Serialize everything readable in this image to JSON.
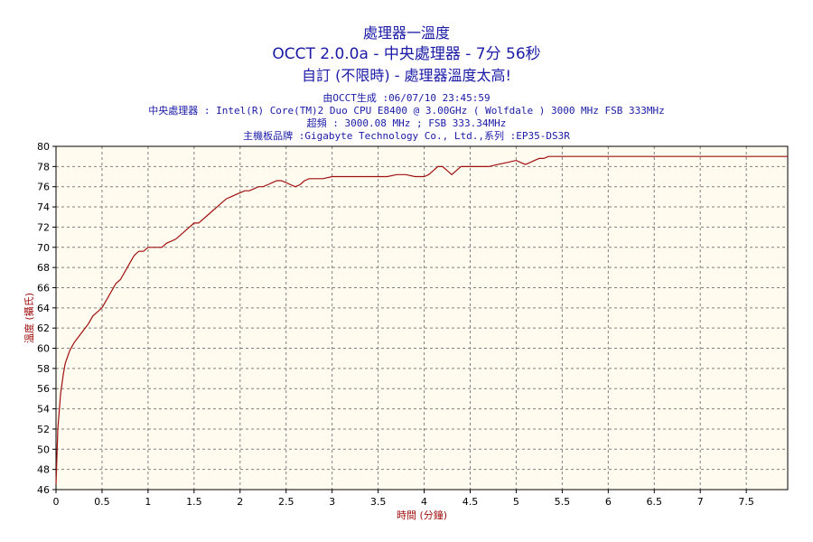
{
  "titles": {
    "line1": "處理器一溫度",
    "line2": "OCCT 2.0.0a - 中央處理器 - 7分 56秒",
    "line3": "自訂 (不限時) - 處理器溫度太高!"
  },
  "info": {
    "generated": "由OCCT生成 :06/07/10 23:45:59",
    "cpu": "中央處理器 : Intel(R) Core(TM)2 Duo CPU E8400 @ 3.00GHz ( Wolfdale ) 3000 MHz FSB 333MHz",
    "freq": "超頻 : 3000.08 MHz ; FSB 333.34MHz",
    "board": "主機板品牌 :Gigabyte Technology Co., Ltd.,系列 :EP35-DS3R"
  },
  "colors": {
    "title": "#1a1aa6",
    "line": "#a01010",
    "plot_bg": "#fffbee",
    "grid": "#808080",
    "axis_label": "#a01010"
  },
  "chart_data": {
    "type": "line",
    "xlabel": "時間 (分鐘)",
    "ylabel": "溫度 (攝氏)",
    "xlim": [
      0,
      7.95
    ],
    "ylim": [
      46,
      80
    ],
    "xticks": [
      "0",
      "0.5",
      "1",
      "1.5",
      "2",
      "2.5",
      "3",
      "3.5",
      "4",
      "4.5",
      "5",
      "5.5",
      "6",
      "6.5",
      "7",
      "7.5"
    ],
    "yticks": [
      "46",
      "48",
      "50",
      "52",
      "54",
      "56",
      "58",
      "60",
      "62",
      "64",
      "66",
      "68",
      "70",
      "72",
      "74",
      "76",
      "78",
      "80"
    ],
    "grid": true,
    "series": [
      {
        "x": [
          0,
          0.02,
          0.05,
          0.08,
          0.1,
          0.15,
          0.2,
          0.25,
          0.3,
          0.35,
          0.4,
          0.45,
          0.5,
          0.55,
          0.6,
          0.65,
          0.7,
          0.75,
          0.8,
          0.85,
          0.9,
          0.95,
          1.0,
          1.05,
          1.1,
          1.15,
          1.2,
          1.3,
          1.35,
          1.4,
          1.45,
          1.5,
          1.55,
          1.6,
          1.65,
          1.7,
          1.75,
          1.8,
          1.85,
          1.9,
          1.95,
          2.0,
          2.05,
          2.1,
          2.15,
          2.2,
          2.25,
          2.3,
          2.35,
          2.4,
          2.45,
          2.5,
          2.55,
          2.6,
          2.65,
          2.7,
          2.75,
          2.8,
          2.85,
          2.9,
          3.0,
          3.1,
          3.2,
          3.3,
          3.4,
          3.5,
          3.6,
          3.7,
          3.8,
          3.9,
          4.0,
          4.05,
          4.1,
          4.15,
          4.2,
          4.25,
          4.3,
          4.35,
          4.4,
          4.45,
          4.5,
          4.55,
          4.6,
          4.7,
          4.8,
          4.9,
          5.0,
          5.05,
          5.1,
          5.15,
          5.2,
          5.25,
          5.3,
          5.35,
          5.4,
          5.5,
          5.6,
          5.7,
          5.75,
          5.8,
          5.85,
          5.9,
          6.0,
          6.5,
          7.0,
          7.5,
          7.95
        ],
        "y": [
          46.5,
          52,
          55.5,
          57.5,
          58.5,
          59.8,
          60.6,
          61.2,
          61.8,
          62.4,
          63.2,
          63.6,
          64.0,
          64.8,
          65.6,
          66.4,
          66.8,
          67.6,
          68.4,
          69.2,
          69.6,
          69.6,
          70.0,
          70.0,
          70.0,
          70.0,
          70.4,
          70.8,
          71.2,
          71.6,
          72.0,
          72.4,
          72.4,
          72.8,
          73.2,
          73.6,
          74.0,
          74.4,
          74.8,
          75.0,
          75.2,
          75.4,
          75.6,
          75.6,
          75.8,
          76.0,
          76.0,
          76.2,
          76.4,
          76.6,
          76.6,
          76.4,
          76.2,
          76.0,
          76.2,
          76.6,
          76.8,
          76.8,
          76.8,
          76.8,
          77.0,
          77.0,
          77.0,
          77.0,
          77.0,
          77.0,
          77.0,
          77.2,
          77.2,
          77.0,
          77.0,
          77.2,
          77.6,
          78.0,
          78.0,
          77.6,
          77.2,
          77.6,
          78.0,
          78.0,
          78.0,
          78.0,
          78.0,
          78.0,
          78.2,
          78.4,
          78.6,
          78.4,
          78.2,
          78.4,
          78.6,
          78.8,
          78.8,
          79.0,
          79.0,
          79.0,
          79.0,
          79.0,
          79.0,
          79.0,
          79.0,
          79.0,
          79.0,
          79.0,
          79.0,
          79.0,
          79.0
        ]
      }
    ]
  }
}
